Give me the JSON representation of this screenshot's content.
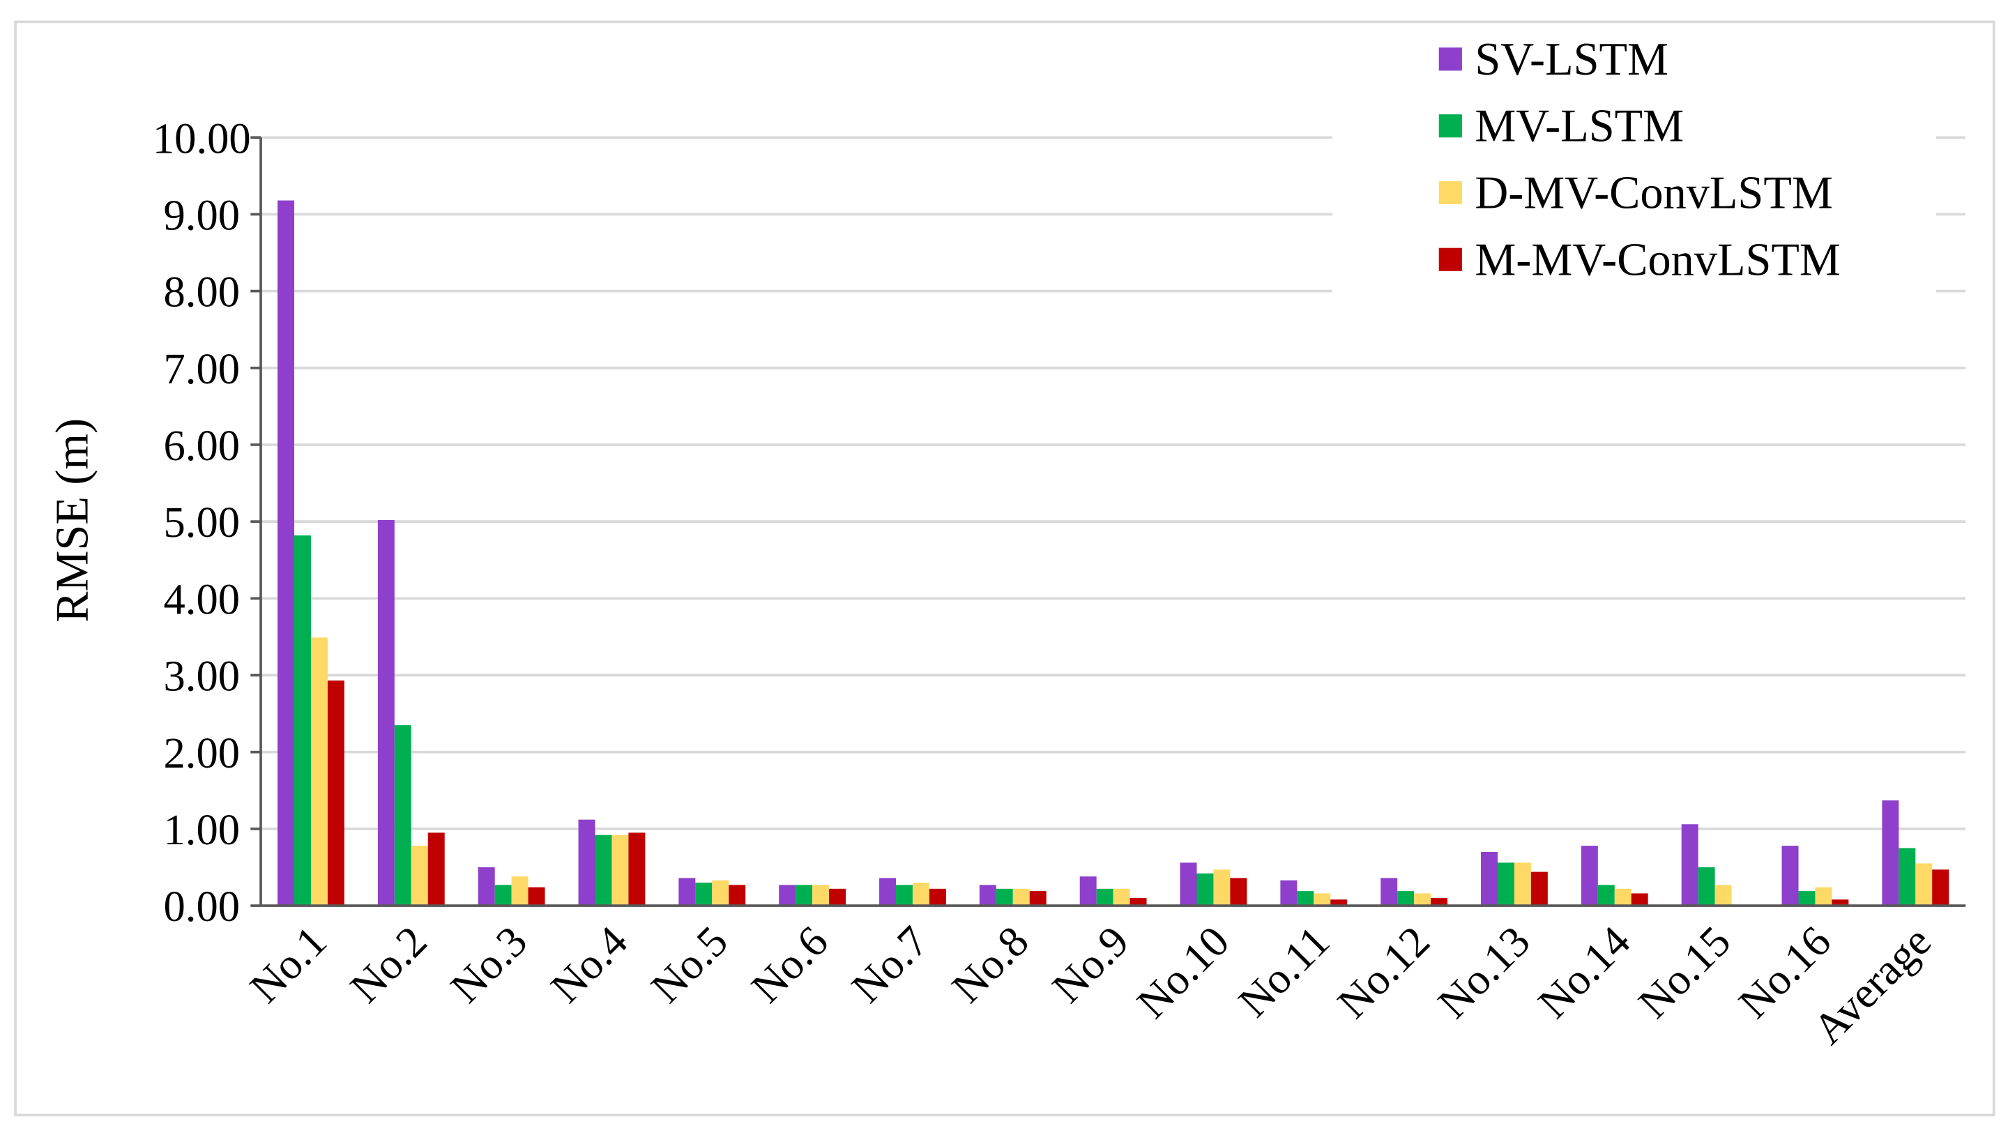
{
  "chart_data": {
    "type": "bar",
    "y_label": "RMSE (m)",
    "categories": [
      "No.1",
      "No.2",
      "No.3",
      "No.4",
      "No.5",
      "No.6",
      "No.7",
      "No.8",
      "No.9",
      "No.10",
      "No.11",
      "No.12",
      "No.13",
      "No.14",
      "No.15",
      "No.16",
      "Average"
    ],
    "series": [
      {
        "name": "SV-LSTM",
        "color": "#8e3fcb",
        "values": [
          9.18,
          5.02,
          0.5,
          1.12,
          0.36,
          0.27,
          0.36,
          0.27,
          0.38,
          0.56,
          0.33,
          0.36,
          0.7,
          0.78,
          1.06,
          0.78,
          1.37
        ]
      },
      {
        "name": "MV-LSTM",
        "color": "#00b050",
        "values": [
          4.82,
          2.35,
          0.27,
          0.92,
          0.3,
          0.27,
          0.27,
          0.22,
          0.22,
          0.42,
          0.19,
          0.19,
          0.56,
          0.27,
          0.5,
          0.19,
          0.75
        ]
      },
      {
        "name": "D-MV-ConvLSTM",
        "color": "#ffd966",
        "values": [
          3.49,
          0.78,
          0.38,
          0.92,
          0.33,
          0.27,
          0.3,
          0.22,
          0.22,
          0.47,
          0.16,
          0.16,
          0.56,
          0.22,
          0.27,
          0.24,
          0.55
        ]
      },
      {
        "name": "M-MV-ConvLSTM",
        "color": "#c00000",
        "values": [
          2.93,
          0.95,
          0.24,
          0.95,
          0.27,
          0.22,
          0.22,
          0.19,
          0.1,
          0.36,
          0.08,
          0.1,
          0.44,
          0.16,
          0,
          0.08,
          0.47
        ]
      }
    ],
    "ylim": [
      0,
      10
    ],
    "yticks": [
      {
        "value": 0,
        "label": "0.00"
      },
      {
        "value": 1,
        "label": "1.00"
      },
      {
        "value": 2,
        "label": "2.00"
      },
      {
        "value": 3,
        "label": "3.00"
      },
      {
        "value": 4,
        "label": "4.00"
      },
      {
        "value": 5,
        "label": "5.00"
      },
      {
        "value": 6,
        "label": "6.00"
      },
      {
        "value": 7,
        "label": "7.00"
      },
      {
        "value": 8,
        "label": "8.00"
      },
      {
        "value": 9,
        "label": "9.00"
      },
      {
        "value": 10,
        "label": "10.00"
      }
    ],
    "grid": true,
    "legend": "top-right"
  }
}
